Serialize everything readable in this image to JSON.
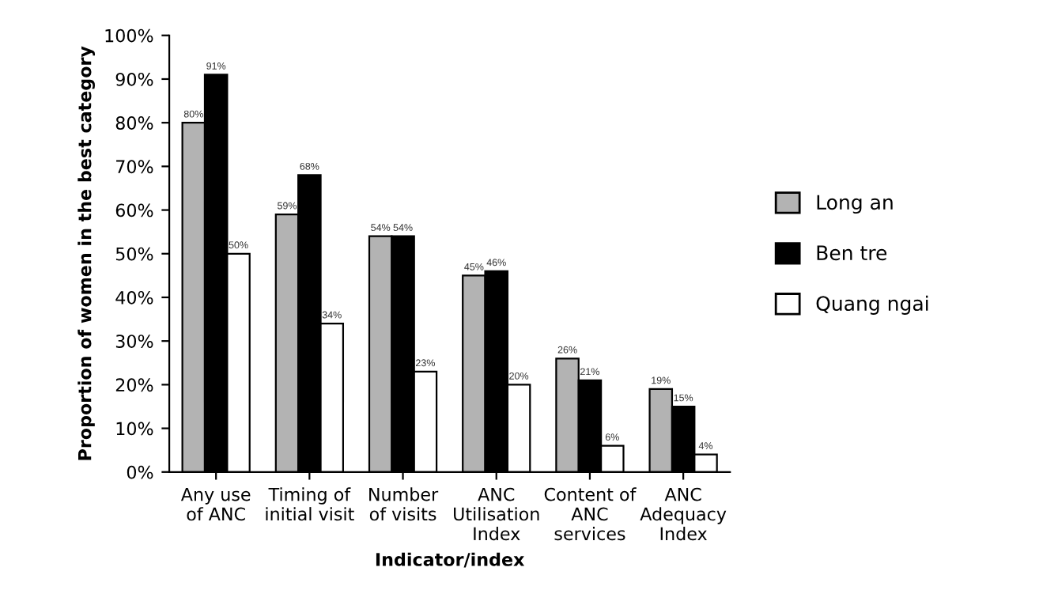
{
  "chart_data": {
    "type": "bar",
    "xlabel": "Indicator/index",
    "ylabel": "Proportion of women in the best category",
    "categories": [
      "Any use\nof ANC",
      "Timing of\ninitial visit",
      "Number\nof visits",
      "ANC\nUtilisation\nIndex",
      "Content of\nANC\nservices",
      "ANC\nAdequacy\nIndex"
    ],
    "series": [
      {
        "name": "Long an",
        "color": "#b3b3b3",
        "values": [
          80,
          59,
          54,
          45,
          26,
          19
        ],
        "value_labels": [
          "80%",
          "59%",
          "54%",
          "45%",
          "26%",
          "19%"
        ]
      },
      {
        "name": "Ben tre",
        "color": "#000000",
        "values": [
          91,
          68,
          54,
          46,
          21,
          15
        ],
        "value_labels": [
          "91%",
          "68%",
          "54%",
          "46%",
          "21%",
          "15%"
        ]
      },
      {
        "name": "Quang ngai",
        "color": "#ffffff",
        "values": [
          50,
          34,
          23,
          20,
          6,
          4
        ],
        "value_labels": [
          "50%",
          "34%",
          "23%",
          "20%",
          "6%",
          "4%"
        ]
      }
    ],
    "ylim": [
      0,
      100
    ],
    "yticks": [
      {
        "value": 0,
        "label": "0%"
      },
      {
        "value": 10,
        "label": "10%"
      },
      {
        "value": 20,
        "label": "20%"
      },
      {
        "value": 30,
        "label": "30%"
      },
      {
        "value": 40,
        "label": "40%"
      },
      {
        "value": 50,
        "label": "50%"
      },
      {
        "value": 60,
        "label": "60%"
      },
      {
        "value": 70,
        "label": "70%"
      },
      {
        "value": 80,
        "label": "80%"
      },
      {
        "value": 90,
        "label": "90%"
      },
      {
        "value": 100,
        "label": "100%"
      }
    ],
    "legend": "right",
    "grid": false
  }
}
